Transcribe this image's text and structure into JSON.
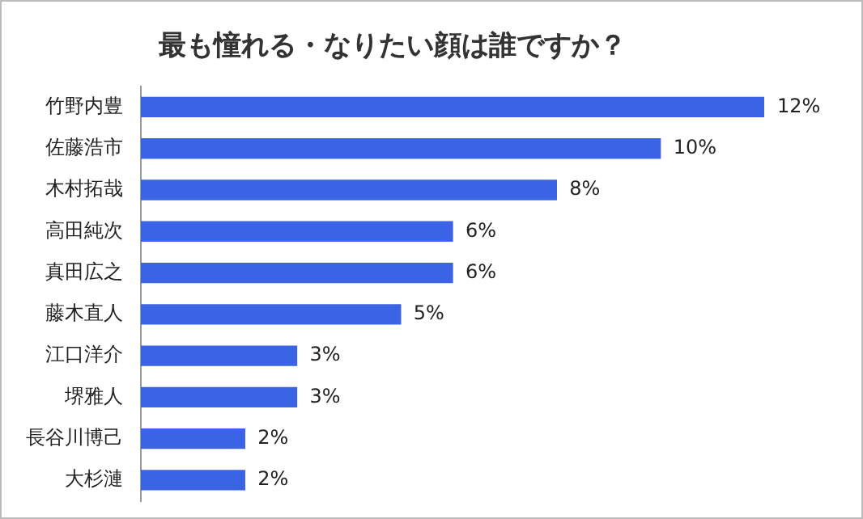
{
  "chart_data": {
    "type": "bar",
    "orientation": "horizontal",
    "title": "最も憧れる・なりたい顔は誰ですか？",
    "categories": [
      "竹野内豊",
      "佐藤浩市",
      "木村拓哉",
      "高田純次",
      "真田広之",
      "藤木直人",
      "江口洋介",
      "堺雅人",
      "長谷川博己",
      "大杉漣"
    ],
    "values": [
      12,
      10,
      8,
      6,
      6,
      5,
      3,
      3,
      2,
      2
    ],
    "value_labels": [
      "12%",
      "10%",
      "8%",
      "6%",
      "6%",
      "5%",
      "3%",
      "3%",
      "2%",
      "2%"
    ],
    "color": "#3b63e6"
  }
}
